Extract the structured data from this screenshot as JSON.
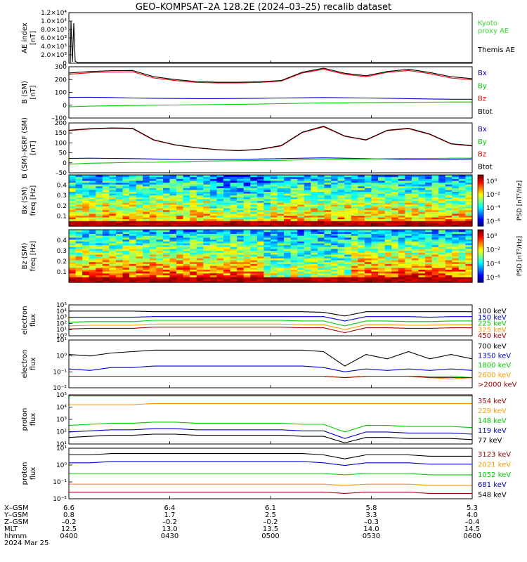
{
  "title": "GEO–KOMPSAT–2A 128.2E (2024–03–25) recalib dataset",
  "colors": {
    "black": "#000000",
    "red": "#ff0000",
    "blue": "#0000cc",
    "green": "#00cc00",
    "kyoto": "#33dd33",
    "orange": "#ff9900",
    "darkred": "#990000"
  },
  "chart_data": [
    {
      "type": "line",
      "panel": "ae",
      "ylabel": [
        "AE index",
        "[nT]"
      ],
      "yticks": [
        "0",
        "2.0×10³",
        "4.0×10³",
        "6.0×10³",
        "8.0×10³",
        "1.0×10⁴",
        "1.2×10⁴"
      ],
      "ylim": [
        0,
        12000
      ],
      "series": [
        {
          "name": "Kyoto proxy AE",
          "color": "#33dd33",
          "label_lines": [
            "Kyoto",
            "proxy AE"
          ],
          "values": [
            0,
            0
          ]
        },
        {
          "name": "Themis AE",
          "color": "#000000",
          "label_lines": [
            "Themis AE"
          ],
          "values": [
            10000,
            200,
            150,
            120,
            100
          ]
        }
      ]
    },
    {
      "type": "line",
      "panel": "b_sm",
      "ylabel": [
        "B (SM)",
        "[nT]"
      ],
      "yticks": [
        "–100",
        "0",
        "100",
        "200",
        "300"
      ],
      "ylim": [
        -100,
        310
      ],
      "series": [
        {
          "name": "Bx",
          "color": "#0000cc",
          "values": [
            65,
            66,
            64,
            60,
            58,
            56,
            55,
            55,
            56,
            58,
            60,
            62,
            64,
            62,
            60,
            58,
            55,
            52,
            50,
            50
          ]
        },
        {
          "name": "By",
          "color": "#00cc00",
          "values": [
            -10,
            -5,
            -2,
            0,
            2,
            4,
            6,
            8,
            10,
            12,
            15,
            18,
            20,
            22,
            24,
            25,
            26,
            27,
            28,
            28
          ]
        },
        {
          "name": "Bz",
          "color": "#ff0000",
          "values": [
            250,
            262,
            268,
            270,
            220,
            200,
            185,
            180,
            180,
            185,
            195,
            260,
            290,
            250,
            230,
            265,
            280,
            255,
            220,
            205
          ]
        },
        {
          "name": "Btot",
          "color": "#000000",
          "values": [
            260,
            272,
            278,
            280,
            230,
            208,
            192,
            186,
            186,
            190,
            200,
            266,
            298,
            258,
            238,
            272,
            290,
            264,
            230,
            215
          ]
        }
      ]
    },
    {
      "type": "line",
      "panel": "b_sm_igrf",
      "ylabel": [
        "B (SM)–IGRF (SM)",
        "[nT]"
      ],
      "yticks": [
        "–50",
        "0",
        "50",
        "100",
        "150",
        "200"
      ],
      "ylim": [
        -60,
        200
      ],
      "series": [
        {
          "name": "Bx",
          "color": "#0000cc",
          "values": [
            15,
            16,
            15,
            14,
            12,
            10,
            9,
            9,
            10,
            12,
            14,
            16,
            18,
            16,
            14,
            12,
            10,
            10,
            10,
            12
          ]
        },
        {
          "name": "By",
          "color": "#00cc00",
          "values": [
            -15,
            -10,
            -8,
            -5,
            -5,
            -3,
            0,
            2,
            3,
            5,
            5,
            8,
            10,
            12,
            12,
            14,
            15,
            15,
            16,
            16
          ]
        },
        {
          "name": "Bz",
          "color": "#ff0000",
          "values": [
            160,
            168,
            172,
            170,
            110,
            85,
            70,
            60,
            55,
            62,
            80,
            150,
            180,
            130,
            110,
            160,
            170,
            140,
            90,
            80
          ]
        },
        {
          "name": "Btot",
          "color": "#000000",
          "values": [
            162,
            170,
            174,
            172,
            112,
            86,
            71,
            61,
            56,
            63,
            82,
            152,
            183,
            132,
            112,
            162,
            172,
            142,
            92,
            82
          ]
        }
      ]
    },
    {
      "type": "heatmap",
      "panel": "bx_psd",
      "ylabel": [
        "Bx (SM)",
        "freq [Hz]"
      ],
      "yticks": [
        "0.1",
        "0.2",
        "0.3",
        "0.4"
      ],
      "ylim": [
        0,
        0.5
      ],
      "colorbar_label": [
        "PSD [nT²/Hz]"
      ],
      "colorbar_ticks": [
        "10⁰",
        "10⁻²",
        "10⁻⁴",
        "10⁻⁶"
      ]
    },
    {
      "type": "heatmap",
      "panel": "bz_psd",
      "ylabel": [
        "Bz (SM)",
        "freq [Hz]"
      ],
      "yticks": [
        "0.1",
        "0.2",
        "0.3",
        "0.4"
      ],
      "ylim": [
        0,
        0.5
      ],
      "colorbar_label": [
        "PSD [nT²/Hz]"
      ],
      "colorbar_ticks": [
        "10⁰",
        "10⁻²",
        "10⁻⁴",
        "10⁻⁶"
      ]
    },
    {
      "type": "line",
      "panel": "electron_flux_low",
      "ylabel": [
        "electron",
        "flux"
      ],
      "log": true,
      "yticks": [
        "10⁰",
        "10¹",
        "10²",
        "10³",
        "10⁴",
        "10⁵"
      ],
      "ylim": [
        0,
        5
      ],
      "series": [
        {
          "name": "100 keV",
          "color": "#000000",
          "values": [
            4.0,
            4.0,
            4.0,
            4.0,
            3.9,
            3.9,
            3.9,
            3.9,
            3.9,
            3.9,
            3.9,
            3.9,
            3.8,
            3.2,
            3.9,
            3.9,
            3.9,
            3.9,
            3.9,
            3.9
          ]
        },
        {
          "name": "150 keV",
          "color": "#0000cc",
          "values": [
            3.0,
            3.0,
            3.0,
            3.0,
            3.1,
            3.1,
            3.1,
            3.1,
            3.1,
            3.1,
            3.1,
            3.1,
            3.1,
            2.4,
            3.1,
            3.1,
            3.1,
            3.0,
            3.1,
            3.1
          ]
        },
        {
          "name": "225 keV",
          "color": "#00cc00",
          "values": [
            2.2,
            2.3,
            2.3,
            2.3,
            2.5,
            2.5,
            2.5,
            2.5,
            2.5,
            2.5,
            2.5,
            2.4,
            2.4,
            1.6,
            2.4,
            2.4,
            2.3,
            2.3,
            2.4,
            2.4
          ]
        },
        {
          "name": "325 keV",
          "color": "#ff9900",
          "values": [
            1.6,
            1.7,
            1.7,
            1.7,
            1.9,
            1.9,
            1.9,
            1.9,
            1.9,
            1.9,
            1.9,
            1.8,
            1.8,
            1.0,
            1.8,
            1.8,
            1.7,
            1.7,
            1.8,
            1.8
          ]
        },
        {
          "name": "450 keV",
          "color": "#990000",
          "values": [
            1.1,
            1.2,
            1.2,
            1.2,
            1.4,
            1.4,
            1.4,
            1.4,
            1.4,
            1.4,
            1.4,
            1.3,
            1.3,
            0.5,
            1.3,
            1.3,
            1.2,
            1.2,
            1.3,
            1.3
          ]
        }
      ]
    },
    {
      "type": "line",
      "panel": "electron_flux_high",
      "ylabel": [
        "electron",
        "flux"
      ],
      "log": true,
      "yticks": [
        "10⁻²",
        "10⁻¹",
        "10⁰",
        "10¹"
      ],
      "ylim": [
        -2.3,
        1
      ],
      "series": [
        {
          "name": "700 keV",
          "color": "#000000",
          "values": [
            0.0,
            -0.1,
            0.1,
            0.2,
            0.3,
            0.3,
            0.3,
            0.3,
            0.3,
            0.3,
            0.3,
            0.3,
            0.2,
            -0.8,
            0.0,
            -0.3,
            0.2,
            -0.3,
            0.0,
            -0.3
          ]
        },
        {
          "name": "1350 keV",
          "color": "#0000cc",
          "values": [
            -1.0,
            -1.1,
            -0.9,
            -0.9,
            -0.8,
            -0.8,
            -0.8,
            -0.8,
            -0.8,
            -0.8,
            -0.8,
            -0.8,
            -0.9,
            -1.2,
            -1.0,
            -1.1,
            -1.0,
            -1.1,
            -1.0,
            -1.1
          ]
        },
        {
          "name": "1800 keV",
          "color": "#00cc00",
          "values": [
            -1.5,
            -1.5,
            -1.5,
            -1.5,
            -1.5,
            -1.5,
            -1.5,
            -1.5,
            -1.5,
            -1.5,
            -1.5,
            -1.5,
            -1.5,
            -1.6,
            -1.5,
            -1.5,
            -1.5,
            -1.5,
            -1.5,
            -1.6
          ]
        },
        {
          "name": "2600 keV",
          "color": "#ff9900",
          "values": [
            -1.5,
            -1.5,
            -1.5,
            -1.5,
            -1.5,
            -1.5,
            -1.5,
            -1.5,
            -1.5,
            -1.5,
            -1.5,
            -1.5,
            -1.5,
            -1.6,
            -1.5,
            -1.5,
            -1.5,
            -1.6,
            -1.7,
            -1.6
          ]
        },
        {
          "name": ">2000 keV",
          "color": "#990000",
          "values": [
            -1.5,
            -1.5,
            -1.5,
            -1.5,
            -1.5,
            -1.5,
            -1.5,
            -1.5,
            -1.5,
            -1.5,
            -1.5,
            -1.5,
            -1.5,
            -1.6,
            -1.5,
            -1.5,
            -1.5,
            -1.6,
            -1.6,
            -1.6
          ]
        }
      ]
    },
    {
      "type": "line",
      "panel": "proton_flux_low",
      "ylabel": [
        "proton",
        "flux"
      ],
      "log": true,
      "yticks": [
        "10¹",
        "10²",
        "10³",
        "10⁴",
        "10⁵"
      ],
      "ylim": [
        0.6,
        5.1
      ],
      "series": [
        {
          "name": "354 keV",
          "color": "#990000",
          "values": [
            5.0,
            5.0,
            5.0,
            5.0,
            5.0,
            5.0,
            5.0,
            5.0,
            5.0,
            5.0,
            5.0,
            5.0,
            5.0,
            5.0,
            5.0,
            5.0,
            5.0,
            5.0,
            5.0,
            5.0
          ]
        },
        {
          "name": "229 keV",
          "color": "#ff9900",
          "values": [
            4.2,
            4.2,
            4.2,
            4.2,
            4.3,
            4.3,
            4.3,
            4.3,
            4.3,
            4.3,
            4.3,
            4.3,
            4.3,
            4.3,
            4.3,
            4.3,
            4.3,
            4.3,
            4.3,
            4.3
          ]
        },
        {
          "name": "148 keV",
          "color": "#00cc00",
          "values": [
            2.3,
            2.4,
            2.5,
            2.5,
            2.6,
            2.6,
            2.5,
            2.5,
            2.5,
            2.5,
            2.5,
            2.4,
            2.4,
            1.7,
            2.3,
            2.3,
            2.2,
            2.2,
            2.2,
            2.1
          ]
        },
        {
          "name": "119 keV",
          "color": "#0000cc",
          "values": [
            1.7,
            1.8,
            1.9,
            1.9,
            2.0,
            2.0,
            1.9,
            1.9,
            1.9,
            1.9,
            1.9,
            1.8,
            1.8,
            1.1,
            1.7,
            1.7,
            1.6,
            1.6,
            1.6,
            1.5
          ]
        },
        {
          "name": "77 keV",
          "color": "#000000",
          "values": [
            1.2,
            1.3,
            1.4,
            1.4,
            1.5,
            1.5,
            1.4,
            1.4,
            1.4,
            1.4,
            1.4,
            1.3,
            1.3,
            0.7,
            1.2,
            1.2,
            1.1,
            1.1,
            1.1,
            1.0
          ]
        }
      ]
    },
    {
      "type": "line",
      "panel": "proton_flux_high",
      "ylabel": [
        "proton",
        "flux"
      ],
      "log": true,
      "yticks": [
        "10⁻²",
        "10⁻¹",
        "10⁰",
        "10¹"
      ],
      "ylim": [
        -2.3,
        1.5
      ],
      "series": [
        {
          "name": "3123 keV",
          "color": "#990000",
          "values": [
            -1.8,
            -1.8,
            -1.8,
            -1.8,
            -1.8,
            -1.8,
            -1.8,
            -1.8,
            -1.8,
            -1.8,
            -1.8,
            -1.8,
            -1.8,
            -1.9,
            -1.8,
            -1.8,
            -1.8,
            -1.9,
            -1.9,
            -1.9
          ]
        },
        {
          "name": "2021 keV",
          "color": "#ff9900",
          "values": [
            -1.2,
            -1.2,
            -1.2,
            -1.2,
            -1.2,
            -1.2,
            -1.2,
            -1.2,
            -1.2,
            -1.2,
            -1.2,
            -1.2,
            -1.2,
            -1.3,
            -1.2,
            -1.2,
            -1.2,
            -1.3,
            -1.3,
            -1.3
          ]
        },
        {
          "name": "1052 keV",
          "color": "#00cc00",
          "values": [
            -0.4,
            -0.4,
            -0.4,
            -0.4,
            -0.4,
            -0.4,
            -0.4,
            -0.4,
            -0.4,
            -0.4,
            -0.4,
            -0.4,
            -0.4,
            -0.5,
            -0.4,
            -0.4,
            -0.4,
            -0.5,
            -0.5,
            -0.5
          ]
        },
        {
          "name": "681 keV",
          "color": "#0000cc",
          "values": [
            0.4,
            0.4,
            0.5,
            0.5,
            0.5,
            0.5,
            0.5,
            0.5,
            0.5,
            0.5,
            0.5,
            0.5,
            0.4,
            0.2,
            0.4,
            0.4,
            0.4,
            0.3,
            0.3,
            0.3
          ]
        },
        {
          "name": "548 keV",
          "color": "#000000",
          "values": [
            1.0,
            1.0,
            1.1,
            1.1,
            1.1,
            1.1,
            1.1,
            1.1,
            1.1,
            1.1,
            1.1,
            1.1,
            1.0,
            0.7,
            1.0,
            1.0,
            1.0,
            0.9,
            0.9,
            0.9
          ]
        }
      ]
    }
  ],
  "x_axis": {
    "row_labels": [
      "X–GSM",
      "Y–GSM",
      "Z–GSM",
      "MLT",
      "hhmm",
      "2024 Mar 25"
    ],
    "columns": [
      {
        "x_gsm": "6.6",
        "y_gsm": "0.8",
        "z_gsm": "–0.2",
        "mlt": "12.5",
        "hhmm": "0400"
      },
      {
        "x_gsm": "6.4",
        "y_gsm": "1.7",
        "z_gsm": "–0.2",
        "mlt": "13.0",
        "hhmm": "0430"
      },
      {
        "x_gsm": "6.1",
        "y_gsm": "2.5",
        "z_gsm": "–0.2",
        "mlt": "13.5",
        "hhmm": "0500"
      },
      {
        "x_gsm": "5.8",
        "y_gsm": "3.3",
        "z_gsm": "–0.3",
        "mlt": "14.0",
        "hhmm": "0530"
      },
      {
        "x_gsm": "5.3",
        "y_gsm": "4.0",
        "z_gsm": "–0.4",
        "mlt": "14.5",
        "hhmm": "0600"
      }
    ]
  }
}
